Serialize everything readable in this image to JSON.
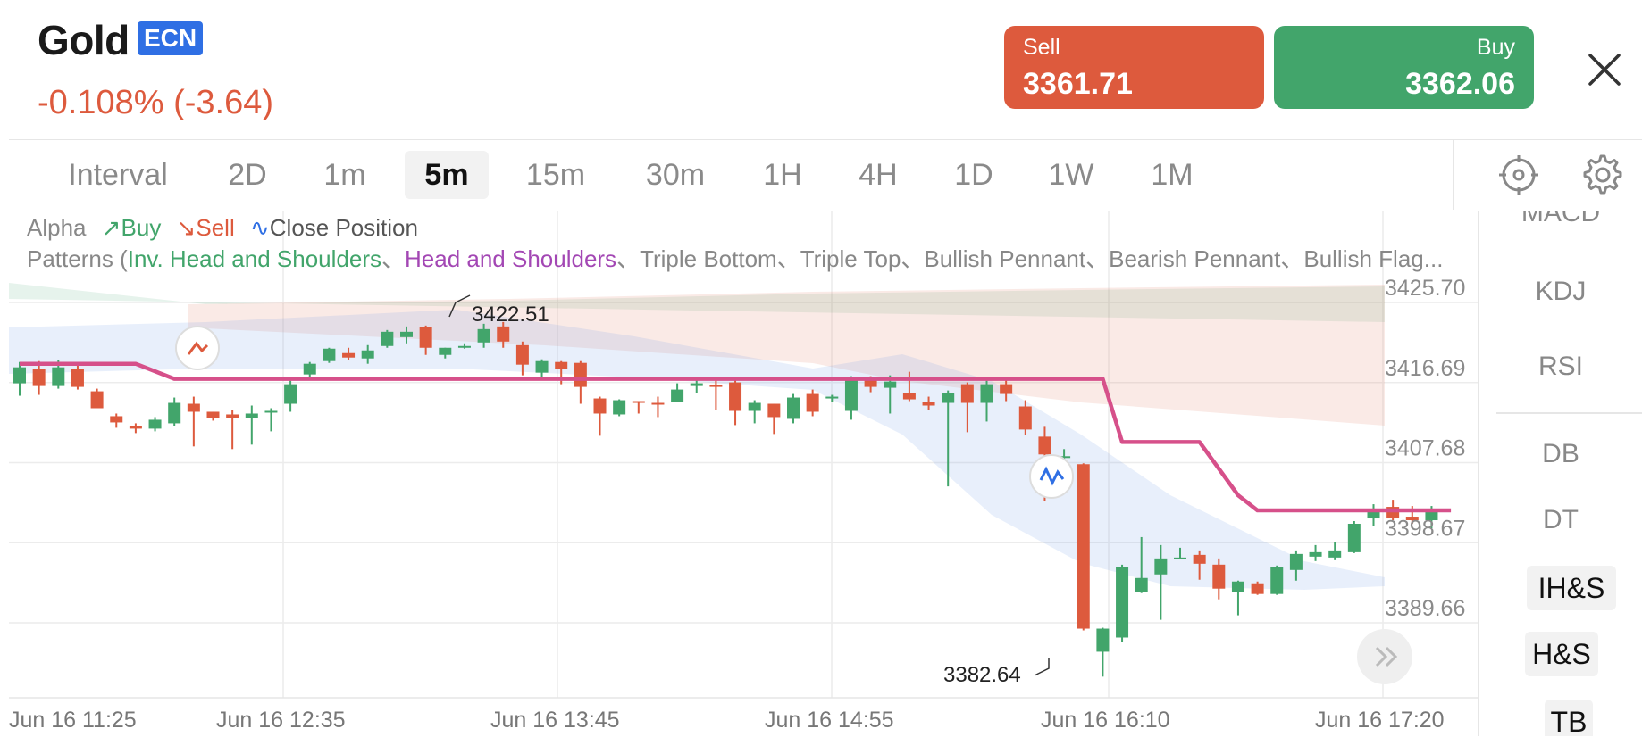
{
  "instrument": {
    "name": "Gold",
    "badge": "ECN",
    "change": "-0.108% (-3.64)"
  },
  "quote": {
    "sell": {
      "label": "Sell",
      "price": "3361.71"
    },
    "buy": {
      "label": "Buy",
      "price": "3362.06"
    }
  },
  "intervals": {
    "label": "Interval",
    "items": [
      "2D",
      "1m",
      "5m",
      "15m",
      "30m",
      "1H",
      "4H",
      "1D",
      "1W",
      "1M"
    ],
    "active": "5m"
  },
  "legend": {
    "alpha": "Alpha",
    "buy": "Buy",
    "sell": "Sell",
    "close_position": "Close Position",
    "patterns_prefix": "Patterns (",
    "pattern_ihs": "Inv. Head and Shoulders",
    "sep1": "、",
    "pattern_hs": "Head and Shoulders",
    "rest": "、Triple Bottom、Triple Top、Bullish Pennant、Bearish Pennant、Bullish Flag..."
  },
  "indicators": [
    "MACD",
    "KDJ",
    "RSI"
  ],
  "patterns": [
    "DB",
    "DT",
    "IH&S",
    "H&S",
    "TB"
  ],
  "colors": {
    "up": "#42a56b",
    "down": "#dd5a3d",
    "ma": "#d6508a",
    "accent": "#2f6fe4"
  },
  "chart_data": {
    "type": "candlestick",
    "y_ticks": [
      "3425.70",
      "3416.69",
      "3407.68",
      "3398.67",
      "3389.66"
    ],
    "x_ticks": [
      "Jun 16 11:25",
      "Jun 16 12:35",
      "Jun 16 13:45",
      "Jun 16 14:55",
      "Jun 16 16:10",
      "Jun 16 17:20"
    ],
    "ylim": [
      3380,
      3430
    ],
    "high_label": "3422.51",
    "low_label": "3382.64",
    "candles": [
      [
        3415.6,
        3418.0,
        3414.2,
        3417.4
      ],
      [
        3417.2,
        3418.1,
        3414.3,
        3415.3
      ],
      [
        3415.3,
        3418.2,
        3415.0,
        3417.4
      ],
      [
        3417.2,
        3417.6,
        3414.9,
        3415.2
      ],
      [
        3414.7,
        3415.0,
        3412.8,
        3412.8
      ],
      [
        3411.9,
        3412.2,
        3410.6,
        3411.2
      ],
      [
        3410.8,
        3411.1,
        3410.0,
        3410.5
      ],
      [
        3410.5,
        3411.8,
        3410.2,
        3411.5
      ],
      [
        3411.1,
        3414.0,
        3410.8,
        3413.4
      ],
      [
        3413.3,
        3414.1,
        3408.5,
        3412.4
      ],
      [
        3412.4,
        3412.4,
        3411.4,
        3411.7
      ],
      [
        3412.1,
        3412.6,
        3408.2,
        3411.7
      ],
      [
        3411.7,
        3413.1,
        3408.7,
        3412.2
      ],
      [
        3412.3,
        3412.8,
        3410.2,
        3412.5
      ],
      [
        3413.3,
        3415.9,
        3412.4,
        3415.5
      ],
      [
        3416.6,
        3418.0,
        3416.1,
        3417.8
      ],
      [
        3418.1,
        3419.6,
        3417.9,
        3419.5
      ],
      [
        3419.0,
        3419.6,
        3418.2,
        3418.5
      ],
      [
        3418.4,
        3419.9,
        3417.8,
        3419.3
      ],
      [
        3419.8,
        3421.6,
        3419.6,
        3421.4
      ],
      [
        3420.8,
        3422.0,
        3420.1,
        3421.4
      ],
      [
        3421.9,
        3422.1,
        3418.8,
        3419.6
      ],
      [
        3418.8,
        3419.6,
        3418.4,
        3419.6
      ],
      [
        3419.6,
        3420.1,
        3419.5,
        3419.8
      ],
      [
        3420.2,
        3422.3,
        3419.6,
        3421.7
      ],
      [
        3422.0,
        3422.5,
        3419.6,
        3420.3
      ],
      [
        3419.9,
        3420.3,
        3416.5,
        3417.7
      ],
      [
        3416.8,
        3418.3,
        3416.2,
        3418.1
      ],
      [
        3418.0,
        3418.1,
        3415.5,
        3417.2
      ],
      [
        3417.9,
        3418.1,
        3413.3,
        3415.2
      ],
      [
        3413.9,
        3414.1,
        3409.7,
        3412.2
      ],
      [
        3412.1,
        3413.8,
        3411.9,
        3413.7
      ],
      [
        3413.6,
        3413.6,
        3412.2,
        3413.5
      ],
      [
        3413.4,
        3414.1,
        3411.8,
        3413.3
      ],
      [
        3413.5,
        3415.6,
        3413.5,
        3414.9
      ],
      [
        3415.3,
        3416.2,
        3414.5,
        3415.6
      ],
      [
        3415.4,
        3416.1,
        3412.6,
        3415.3
      ],
      [
        3415.7,
        3416.3,
        3410.9,
        3412.5
      ],
      [
        3412.5,
        3413.7,
        3411.1,
        3413.4
      ],
      [
        3413.3,
        3413.3,
        3409.9,
        3411.8
      ],
      [
        3411.6,
        3414.4,
        3411.1,
        3414.0
      ],
      [
        3414.4,
        3414.9,
        3411.9,
        3412.4
      ],
      [
        3414.1,
        3414.3,
        3413.5,
        3414.1
      ],
      [
        3412.5,
        3416.4,
        3411.5,
        3416.3
      ],
      [
        3416.3,
        3416.4,
        3414.6,
        3415.2
      ],
      [
        3415.1,
        3416.5,
        3412.2,
        3415.8
      ],
      [
        3414.5,
        3416.9,
        3413.6,
        3413.8
      ],
      [
        3413.5,
        3414.1,
        3412.6,
        3413.1
      ],
      [
        3413.4,
        3414.8,
        3404.0,
        3414.5
      ],
      [
        3415.5,
        3415.7,
        3410.1,
        3413.4
      ],
      [
        3413.4,
        3415.9,
        3411.3,
        3415.5
      ],
      [
        3415.5,
        3416.3,
        3413.6,
        3414.4
      ],
      [
        3413.0,
        3413.7,
        3409.8,
        3410.4
      ],
      [
        3409.6,
        3410.7,
        3402.4,
        3407.6
      ],
      [
        3407.4,
        3408.2,
        3404.4,
        3407.4
      ],
      [
        3406.5,
        3406.6,
        3387.8,
        3388.0
      ],
      [
        3385.4,
        3388.1,
        3382.6,
        3388.0
      ],
      [
        3387.0,
        3395.2,
        3386.5,
        3394.9
      ],
      [
        3392.1,
        3398.3,
        3392.0,
        3393.7
      ],
      [
        3394.1,
        3397.4,
        3389.0,
        3395.9
      ],
      [
        3396.0,
        3397.1,
        3395.9,
        3396.0
      ],
      [
        3396.3,
        3396.8,
        3393.5,
        3395.3
      ],
      [
        3395.2,
        3395.9,
        3391.3,
        3392.5
      ],
      [
        3392.1,
        3393.4,
        3389.5,
        3393.3
      ],
      [
        3393.1,
        3393.3,
        3391.8,
        3391.9
      ],
      [
        3391.9,
        3395.1,
        3391.8,
        3394.9
      ],
      [
        3394.6,
        3396.8,
        3393.4,
        3396.4
      ],
      [
        3396.1,
        3397.4,
        3395.6,
        3396.6
      ],
      [
        3396.0,
        3397.7,
        3395.7,
        3396.8
      ],
      [
        3396.6,
        3400.1,
        3396.5,
        3399.8
      ],
      [
        3400.4,
        3402.0,
        3399.5,
        3401.4
      ],
      [
        3401.7,
        3402.5,
        3400.2,
        3400.4
      ],
      [
        3400.6,
        3401.8,
        3399.8,
        3400.2
      ],
      [
        3400.2,
        3401.8,
        3399.3,
        3401.2
      ]
    ],
    "ma_line": [
      [
        0,
        3417.8
      ],
      [
        6,
        3417.8
      ],
      [
        8,
        3416.1
      ],
      [
        56,
        3416.1
      ],
      [
        57,
        3409.0
      ],
      [
        61,
        3409.0
      ],
      [
        63,
        3403.0
      ],
      [
        64,
        3401.3
      ],
      [
        74,
        3401.3
      ]
    ]
  }
}
